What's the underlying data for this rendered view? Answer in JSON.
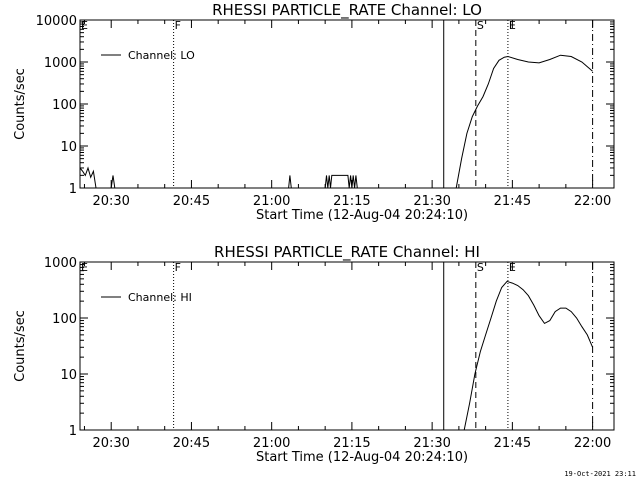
{
  "chart_data": [
    {
      "type": "line",
      "title": "RHESSI PARTICLE_RATE Channel: LO",
      "xlabel": "Start Time (12-Aug-04 20:24:10)",
      "ylabel": "Counts/sec",
      "yscale": "log",
      "xlim": [
        "20:24:10",
        "22:04:00"
      ],
      "ylim": [
        1,
        10000
      ],
      "x_ticks": [
        "20:30",
        "20:45",
        "21:00",
        "21:15",
        "21:30",
        "21:45",
        "22:00"
      ],
      "y_ticks": [
        "1",
        "10",
        "100",
        "1000",
        "10000"
      ],
      "legend": {
        "position": "top-left",
        "entries": [
          "Channel: LO"
        ]
      },
      "grid": false,
      "markers": [
        {
          "label": "E",
          "time": "20:24:10",
          "style": "dotted"
        },
        {
          "label": "F",
          "time": "20:41:40",
          "style": "dotted"
        },
        {
          "label": "",
          "time": "21:32:10",
          "style": "solid"
        },
        {
          "label": "S",
          "time": "21:38:10",
          "style": "dashed"
        },
        {
          "label": "E",
          "time": "21:44:10",
          "style": "dotted"
        },
        {
          "label": "",
          "time": "22:00:00",
          "style": "dashdot"
        }
      ],
      "series": [
        {
          "name": "Channel: LO",
          "x": [
            "20:24:10",
            "20:24:40",
            "20:25:10",
            "20:25:40",
            "20:26:10",
            "20:26:40",
            "20:27:10",
            "20:30:00",
            "20:30:20",
            "20:30:40",
            "21:03:10",
            "21:03:25",
            "21:03:40",
            "21:10:00",
            "21:10:15",
            "21:10:30",
            "21:10:45",
            "21:11:00",
            "21:11:15",
            "21:11:30",
            "21:11:45",
            "21:12:00",
            "21:14:00",
            "21:14:15",
            "21:14:30",
            "21:14:45",
            "21:15:00",
            "21:15:15",
            "21:15:30",
            "21:15:45",
            "21:16:00",
            "21:34:30",
            "21:35:30",
            "21:36:30",
            "21:37:30",
            "21:38:30",
            "21:39:30",
            "21:40:30",
            "21:41:30",
            "21:42:30",
            "21:43:30",
            "21:44:10",
            "21:46:00",
            "21:48:00",
            "21:50:00",
            "21:52:00",
            "21:54:00",
            "21:56:00",
            "21:58:00",
            "22:00:00"
          ],
          "y": [
            3,
            2.5,
            2,
            3,
            1.8,
            2.5,
            1,
            1,
            2,
            1,
            1,
            2,
            1,
            1,
            2,
            1,
            2,
            1,
            2,
            2,
            2,
            2,
            2,
            2,
            1,
            2,
            1,
            2,
            1,
            2,
            1,
            1,
            5,
            20,
            50,
            90,
            150,
            300,
            700,
            1100,
            1300,
            1350,
            1150,
            1000,
            950,
            1150,
            1450,
            1350,
            1000,
            600
          ]
        }
      ]
    },
    {
      "type": "line",
      "title": "RHESSI PARTICLE_RATE Channel: HI",
      "xlabel": "Start Time (12-Aug-04 20:24:10)",
      "ylabel": "Counts/sec",
      "yscale": "log",
      "xlim": [
        "20:24:10",
        "22:04:00"
      ],
      "ylim": [
        1,
        1000
      ],
      "x_ticks": [
        "20:30",
        "20:45",
        "21:00",
        "21:15",
        "21:30",
        "21:45",
        "22:00"
      ],
      "y_ticks": [
        "1",
        "10",
        "100",
        "1000"
      ],
      "legend": {
        "position": "top-left",
        "entries": [
          "Channel: HI"
        ]
      },
      "grid": false,
      "markers": [
        {
          "label": "E",
          "time": "20:24:10",
          "style": "dotted"
        },
        {
          "label": "F",
          "time": "20:41:40",
          "style": "dotted"
        },
        {
          "label": "",
          "time": "21:32:10",
          "style": "solid"
        },
        {
          "label": "S",
          "time": "21:38:10",
          "style": "dashed"
        },
        {
          "label": "E",
          "time": "21:44:10",
          "style": "dotted"
        },
        {
          "label": "",
          "time": "22:00:00",
          "style": "dashdot"
        }
      ],
      "series": [
        {
          "name": "Channel: HI",
          "x": [
            "21:36:00",
            "21:37:00",
            "21:38:00",
            "21:39:00",
            "21:40:00",
            "21:41:00",
            "21:42:00",
            "21:43:00",
            "21:44:00",
            "21:45:00",
            "21:46:00",
            "21:47:00",
            "21:48:00",
            "21:49:00",
            "21:50:00",
            "21:51:00",
            "21:52:00",
            "21:53:00",
            "21:54:00",
            "21:55:00",
            "21:56:00",
            "21:57:00",
            "21:58:00",
            "21:59:00",
            "22:00:00"
          ],
          "y": [
            1,
            3,
            10,
            25,
            50,
            100,
            200,
            350,
            450,
            420,
            380,
            320,
            250,
            170,
            110,
            80,
            90,
            130,
            150,
            150,
            130,
            100,
            70,
            50,
            30
          ]
        }
      ]
    }
  ],
  "footer": {
    "timestamp": "19-Oct-2021 23:11"
  }
}
